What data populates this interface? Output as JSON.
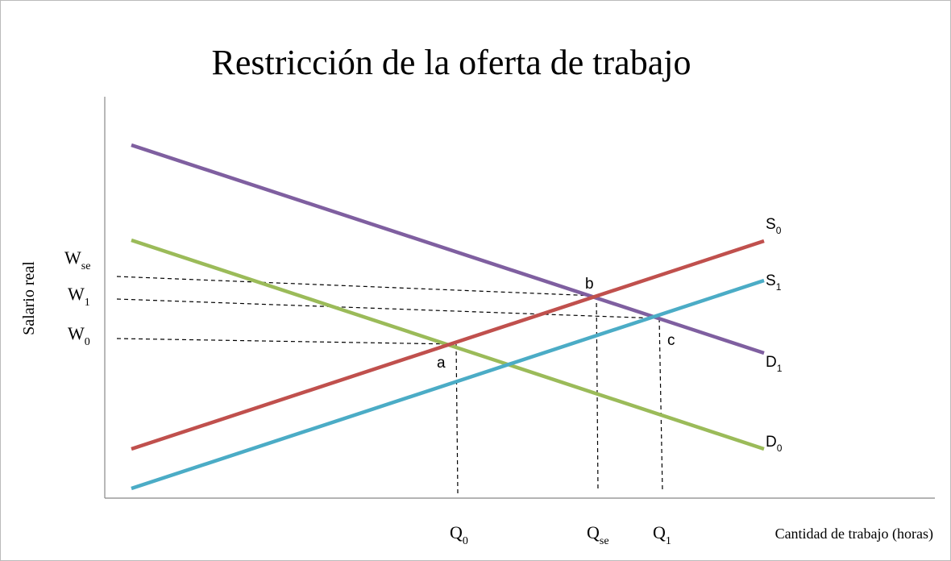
{
  "title": "Restricción de la oferta de trabajo",
  "y_axis_label": "Salario real",
  "x_axis_label": "Cantidad de trabajo (horas)",
  "y_labels": [
    {
      "base": "W",
      "sub": "se"
    },
    {
      "base": "W",
      "sub": "1"
    },
    {
      "base": "W",
      "sub": "0"
    }
  ],
  "x_labels": [
    {
      "base": "Q",
      "sub": "0"
    },
    {
      "base": "Q",
      "sub": "se"
    },
    {
      "base": "Q",
      "sub": "1"
    }
  ],
  "curve_labels": [
    {
      "base": "S",
      "sub": "0"
    },
    {
      "base": "S",
      "sub": "1"
    },
    {
      "base": "D",
      "sub": "1"
    },
    {
      "base": "D",
      "sub": "0"
    }
  ],
  "point_labels": [
    "a",
    "b",
    "c"
  ]
}
